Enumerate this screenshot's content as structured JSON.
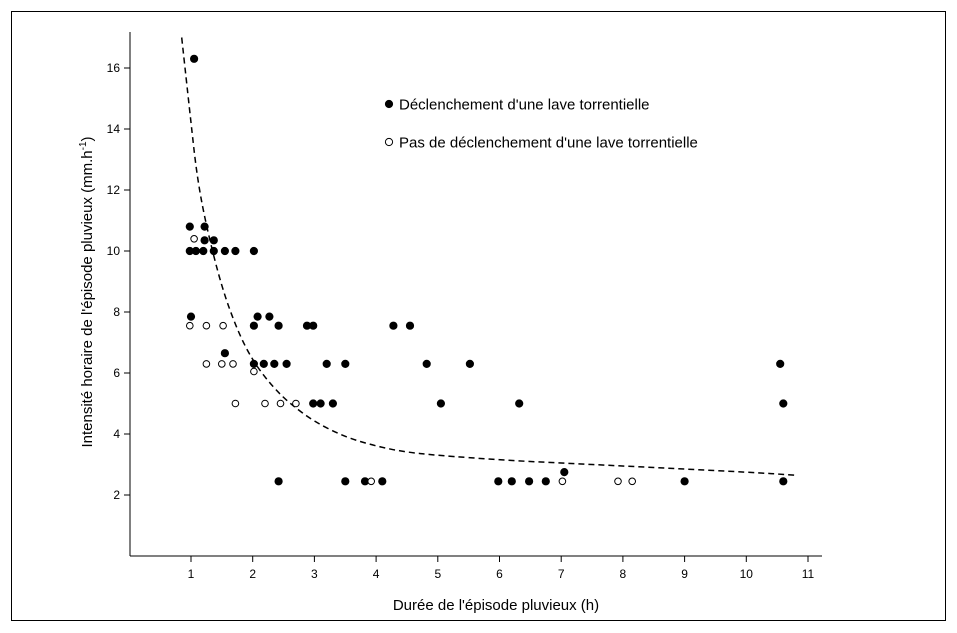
{
  "chart_data": {
    "type": "scatter",
    "xlabel": "Durée de l'épisode pluvieux (h)",
    "ylabel": "Intensité horaire de l'épisode pluvieux (mm.h",
    "ylabel_superscript": "-1",
    "ylabel_suffix": ")",
    "xlim": [
      0,
      11.2
    ],
    "ylim": [
      0,
      17.2
    ],
    "x_ticks": [
      1,
      2,
      3,
      4,
      5,
      6,
      7,
      8,
      9,
      10,
      11
    ],
    "y_ticks": [
      2,
      4,
      6,
      8,
      10,
      12,
      14,
      16
    ],
    "grid": false,
    "legend_position": "top-center",
    "series": [
      {
        "name": "Déclenchement d'une lave torrentielle",
        "marker": "filled-circle",
        "color": "#000000",
        "points": [
          [
            1.05,
            16.3
          ],
          [
            0.98,
            10.8
          ],
          [
            1.22,
            10.8
          ],
          [
            1.22,
            10.35
          ],
          [
            1.37,
            10.35
          ],
          [
            0.98,
            10.0
          ],
          [
            1.08,
            10.0
          ],
          [
            1.2,
            10.0
          ],
          [
            1.37,
            10.0
          ],
          [
            1.55,
            10.0
          ],
          [
            1.72,
            10.0
          ],
          [
            2.02,
            10.0
          ],
          [
            1.0,
            7.85
          ],
          [
            2.08,
            7.85
          ],
          [
            2.27,
            7.85
          ],
          [
            2.02,
            7.55
          ],
          [
            2.42,
            7.55
          ],
          [
            2.88,
            7.55
          ],
          [
            2.98,
            7.55
          ],
          [
            4.28,
            7.55
          ],
          [
            4.55,
            7.55
          ],
          [
            1.55,
            6.65
          ],
          [
            2.02,
            6.3
          ],
          [
            2.18,
            6.3
          ],
          [
            2.35,
            6.3
          ],
          [
            2.55,
            6.3
          ],
          [
            3.2,
            6.3
          ],
          [
            3.5,
            6.3
          ],
          [
            4.82,
            6.3
          ],
          [
            5.52,
            6.3
          ],
          [
            10.55,
            6.3
          ],
          [
            2.98,
            5.0
          ],
          [
            3.1,
            5.0
          ],
          [
            3.3,
            5.0
          ],
          [
            5.05,
            5.0
          ],
          [
            6.32,
            5.0
          ],
          [
            10.6,
            5.0
          ],
          [
            7.05,
            2.75
          ],
          [
            2.42,
            2.45
          ],
          [
            3.5,
            2.45
          ],
          [
            3.82,
            2.45
          ],
          [
            4.1,
            2.45
          ],
          [
            5.98,
            2.45
          ],
          [
            6.2,
            2.45
          ],
          [
            6.48,
            2.45
          ],
          [
            6.75,
            2.45
          ],
          [
            9.0,
            2.45
          ],
          [
            10.6,
            2.45
          ]
        ]
      },
      {
        "name": "Pas de déclenchement d'une lave torrentielle",
        "marker": "open-circle",
        "color": "#000000",
        "points": [
          [
            1.05,
            10.4
          ],
          [
            0.98,
            7.55
          ],
          [
            1.25,
            7.55
          ],
          [
            1.52,
            7.55
          ],
          [
            1.25,
            6.3
          ],
          [
            1.5,
            6.3
          ],
          [
            1.68,
            6.3
          ],
          [
            2.02,
            6.05
          ],
          [
            1.72,
            5.0
          ],
          [
            2.2,
            5.0
          ],
          [
            2.45,
            5.0
          ],
          [
            2.7,
            5.0
          ],
          [
            3.92,
            2.45
          ],
          [
            7.02,
            2.45
          ],
          [
            7.92,
            2.45
          ],
          [
            8.15,
            2.45
          ]
        ]
      }
    ],
    "curve": {
      "style": "dashed",
      "points": [
        [
          0.85,
          17.0
        ],
        [
          1.0,
          14.2
        ],
        [
          1.1,
          12.4
        ],
        [
          1.25,
          10.8
        ],
        [
          1.5,
          8.8
        ],
        [
          1.75,
          7.4
        ],
        [
          2.0,
          6.4
        ],
        [
          2.3,
          5.6
        ],
        [
          2.6,
          5.0
        ],
        [
          3.0,
          4.4
        ],
        [
          3.5,
          3.9
        ],
        [
          4.0,
          3.6
        ],
        [
          4.5,
          3.4
        ],
        [
          5.0,
          3.3
        ],
        [
          6.0,
          3.15
        ],
        [
          7.0,
          3.05
        ],
        [
          8.0,
          2.95
        ],
        [
          9.0,
          2.85
        ],
        [
          10.0,
          2.75
        ],
        [
          10.8,
          2.65
        ]
      ]
    }
  }
}
